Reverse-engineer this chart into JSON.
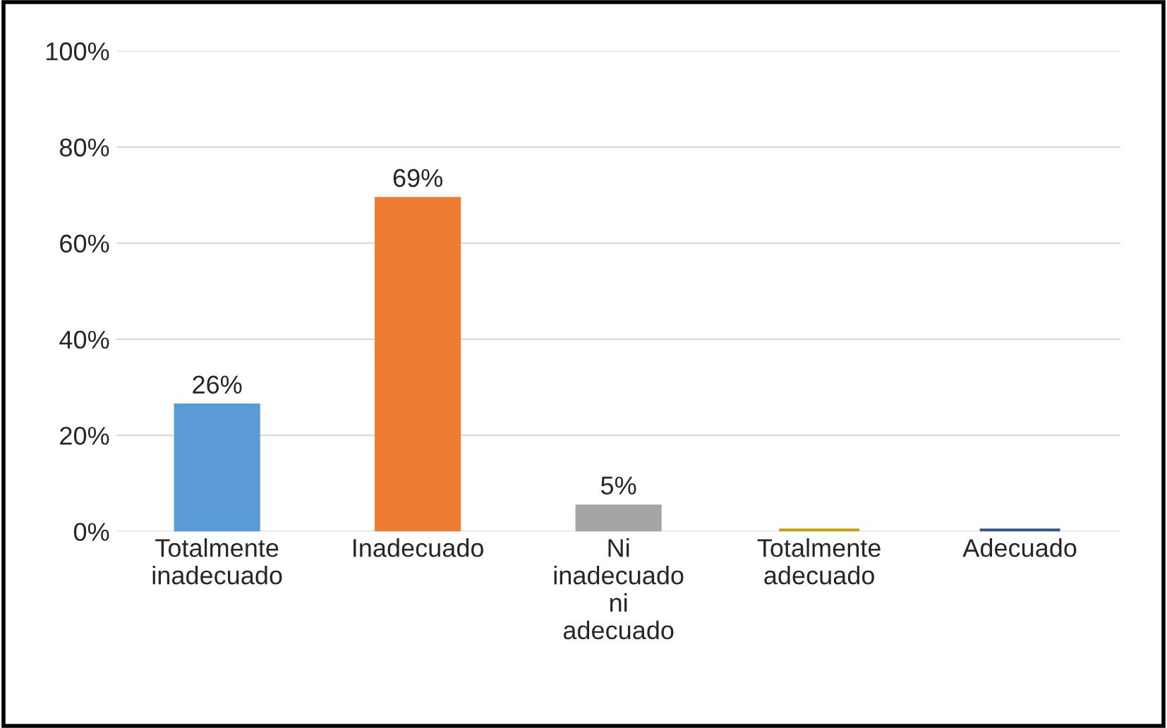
{
  "chart_data": {
    "type": "bar",
    "categories": [
      "Totalmente inadecuado",
      "Inadecuado",
      "Ni inadecuado ni adecuado",
      "Totalmente adecuado",
      "Adecuado"
    ],
    "values": [
      26,
      69,
      5,
      0,
      0
    ],
    "colors": [
      "#5b9bd5",
      "#ed7d31",
      "#a5a5a5",
      "#c9a000",
      "#2f5597"
    ],
    "value_labels": [
      "26%",
      "69%",
      "5%",
      null,
      null
    ],
    "ylim": [
      0,
      100
    ],
    "yticks": [
      {
        "value": 0,
        "label": "0%"
      },
      {
        "value": 20,
        "label": "20%"
      },
      {
        "value": 40,
        "label": "40%"
      },
      {
        "value": 60,
        "label": "60%"
      },
      {
        "value": 80,
        "label": "80%"
      },
      {
        "value": 100,
        "label": "100%"
      }
    ],
    "grid": "y"
  }
}
